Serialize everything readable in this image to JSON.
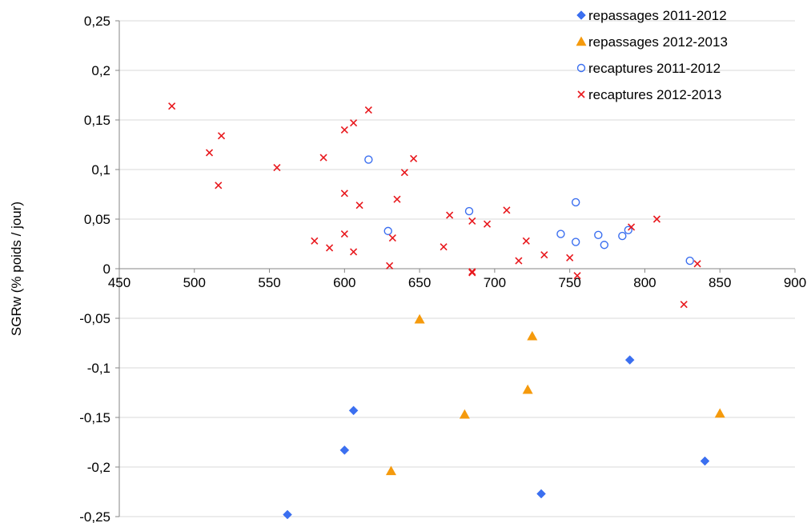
{
  "chart_data": {
    "type": "scatter",
    "title": "",
    "xlabel": "",
    "ylabel": "SGRw (% poids / jour)",
    "xlim": [
      450,
      900
    ],
    "ylim": [
      -0.25,
      0.25
    ],
    "x_ticks": [
      "450",
      "500",
      "550",
      "600",
      "650",
      "700",
      "750",
      "800",
      "850",
      "900"
    ],
    "y_ticks": [
      "0,25",
      "0,2",
      "0,15",
      "0,1",
      "0,05",
      "0",
      "-0,05",
      "-0,1",
      "-0,15",
      "-0,2",
      "-0,25"
    ],
    "grid": true,
    "legend_position": "top-right",
    "series": [
      {
        "name": "repassages 2011-2012",
        "marker": "diamond",
        "color": "#3b6ff0",
        "points": [
          [
            562,
            -0.248
          ],
          [
            600,
            -0.183
          ],
          [
            606,
            -0.143
          ],
          [
            731,
            -0.227
          ],
          [
            790,
            -0.092
          ],
          [
            840,
            -0.194
          ]
        ]
      },
      {
        "name": "repassages 2012-2013",
        "marker": "triangle",
        "color": "#f59a0c",
        "points": [
          [
            650,
            -0.051
          ],
          [
            725,
            -0.068
          ],
          [
            722,
            -0.122
          ],
          [
            680,
            -0.147
          ],
          [
            631,
            -0.204
          ],
          [
            850,
            -0.146
          ]
        ]
      },
      {
        "name": "recaptures 2011-2012",
        "marker": "circle-open",
        "color": "#3b6ff0",
        "points": [
          [
            616,
            0.11
          ],
          [
            629,
            0.038
          ],
          [
            683,
            0.058
          ],
          [
            744,
            0.035
          ],
          [
            754,
            0.067
          ],
          [
            754,
            0.027
          ],
          [
            769,
            0.034
          ],
          [
            773,
            0.024
          ],
          [
            785,
            0.033
          ],
          [
            789,
            0.039
          ],
          [
            830,
            0.008
          ]
        ]
      },
      {
        "name": "recaptures 2012-2013",
        "marker": "x",
        "color": "#e8181d",
        "points": [
          [
            485,
            0.164
          ],
          [
            510,
            0.117
          ],
          [
            516,
            0.084
          ],
          [
            518,
            0.134
          ],
          [
            555,
            0.102
          ],
          [
            580,
            0.028
          ],
          [
            586,
            0.112
          ],
          [
            590,
            0.021
          ],
          [
            600,
            0.14
          ],
          [
            600,
            0.076
          ],
          [
            600,
            0.035
          ],
          [
            606,
            0.147
          ],
          [
            606,
            0.017
          ],
          [
            610,
            0.064
          ],
          [
            616,
            0.16
          ],
          [
            630,
            0.003
          ],
          [
            632,
            0.031
          ],
          [
            635,
            0.07
          ],
          [
            640,
            0.097
          ],
          [
            646,
            0.111
          ],
          [
            666,
            0.022
          ],
          [
            670,
            0.054
          ],
          [
            685,
            0.048
          ],
          [
            685,
            -0.003
          ],
          [
            685,
            -0.004
          ],
          [
            695,
            0.045
          ],
          [
            708,
            0.059
          ],
          [
            716,
            0.008
          ],
          [
            721,
            0.028
          ],
          [
            733,
            0.014
          ],
          [
            750,
            0.011
          ],
          [
            755,
            -0.007
          ],
          [
            791,
            0.042
          ],
          [
            808,
            0.05
          ],
          [
            826,
            -0.036
          ],
          [
            835,
            0.005
          ]
        ]
      }
    ]
  }
}
